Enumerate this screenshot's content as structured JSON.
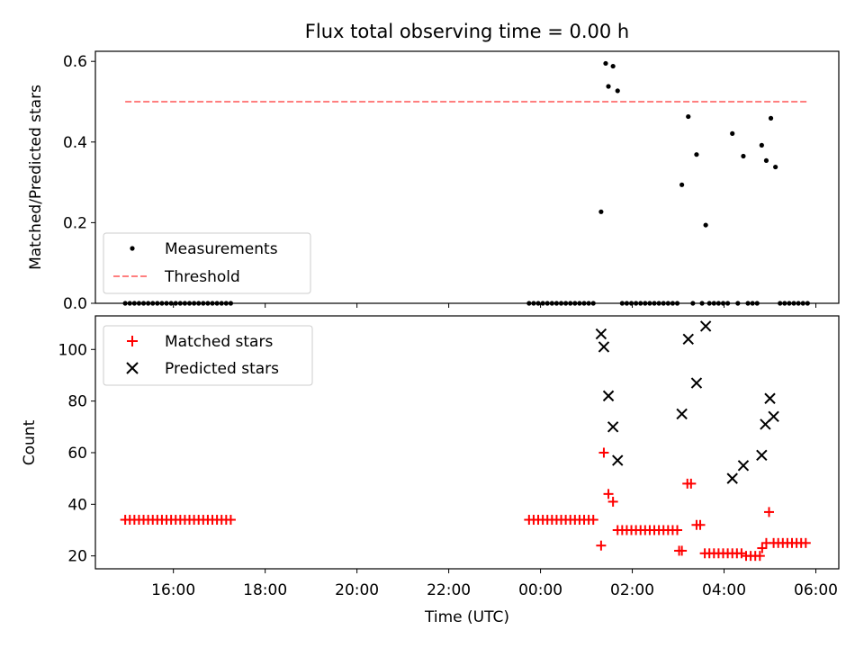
{
  "title": "Flux total observing time = 0.00 h",
  "chart_data": [
    {
      "type": "scatter",
      "panel": "top",
      "ylabel": "Matched/Predicted stars",
      "ylim": [
        0,
        0.625
      ],
      "yticks": [
        0,
        0.2,
        0.4,
        0.6
      ],
      "ytick_labels": [
        "0.0",
        "0.2",
        "0.4",
        "0.6"
      ],
      "legend": {
        "placement": "lower-left",
        "entries": [
          "Measurements",
          "Threshold"
        ]
      },
      "series": [
        {
          "name": "Measurements",
          "color": "#000000",
          "marker": "dot",
          "x": [
            14.95,
            15.05,
            15.15,
            15.25,
            15.35,
            15.45,
            15.55,
            15.65,
            15.75,
            15.85,
            15.95,
            16.05,
            16.15,
            16.25,
            16.35,
            16.45,
            16.55,
            16.65,
            16.75,
            16.85,
            16.95,
            17.05,
            17.15,
            17.25,
            23.75,
            23.85,
            23.95,
            24.05,
            24.15,
            24.25,
            24.35,
            24.45,
            24.55,
            24.65,
            24.75,
            24.85,
            24.95,
            25.05,
            25.15,
            25.32,
            25.42,
            25.48,
            25.58,
            25.68,
            25.78,
            25.88,
            25.98,
            26.08,
            26.18,
            26.28,
            26.38,
            26.48,
            26.58,
            26.68,
            26.78,
            26.88,
            26.98,
            27.08,
            27.22,
            27.32,
            27.4,
            27.52,
            27.6,
            27.68,
            27.78,
            27.88,
            27.98,
            28.08,
            28.18,
            28.3,
            28.42,
            28.52,
            28.62,
            28.72,
            28.82,
            28.92,
            29.02,
            29.12,
            29.22,
            29.32,
            29.42,
            29.52,
            29.62,
            29.72,
            29.82
          ],
          "y": [
            0,
            0,
            0,
            0,
            0,
            0,
            0,
            0,
            0,
            0,
            0,
            0,
            0,
            0,
            0,
            0,
            0,
            0,
            0,
            0,
            0,
            0,
            0,
            0,
            0,
            0,
            0,
            0,
            0,
            0,
            0,
            0,
            0,
            0,
            0,
            0,
            0,
            0,
            0,
            0.227,
            0.595,
            0.538,
            0.588,
            0.527,
            0,
            0,
            0,
            0,
            0,
            0,
            0,
            0,
            0,
            0,
            0,
            0,
            0,
            0.294,
            0.463,
            0,
            0.369,
            0,
            0.194,
            0,
            0,
            0,
            0,
            0,
            0.421,
            0,
            0.365,
            0,
            0,
            0,
            0.392,
            0.354,
            0.459,
            0.338,
            0,
            0,
            0,
            0,
            0,
            0,
            0
          ]
        },
        {
          "name": "Threshold",
          "color": "#ff7f7f",
          "line": "dashed",
          "x": [
            14.95,
            29.85
          ],
          "y": [
            0.5,
            0.5
          ]
        }
      ]
    },
    {
      "type": "scatter",
      "panel": "bottom",
      "xlabel": "Time (UTC)",
      "ylabel": "Count",
      "xlim": [
        14.3,
        30.5
      ],
      "ylim": [
        15,
        113
      ],
      "xticks": [
        16,
        18,
        20,
        22,
        24,
        26,
        28,
        30
      ],
      "xtick_labels": [
        "16:00",
        "18:00",
        "20:00",
        "22:00",
        "00:00",
        "02:00",
        "04:00",
        "06:00"
      ],
      "yticks": [
        20,
        40,
        60,
        80,
        100
      ],
      "ytick_labels": [
        "20",
        "40",
        "60",
        "80",
        "100"
      ],
      "legend": {
        "placement": "upper-left",
        "entries": [
          "Matched stars",
          "Predicted stars"
        ]
      },
      "series": [
        {
          "name": "Matched stars",
          "color": "#ff0000",
          "marker": "plus",
          "x": [
            14.95,
            15.05,
            15.15,
            15.25,
            15.35,
            15.45,
            15.55,
            15.65,
            15.75,
            15.85,
            15.95,
            16.05,
            16.15,
            16.25,
            16.35,
            16.45,
            16.55,
            16.65,
            16.75,
            16.85,
            16.95,
            17.05,
            17.15,
            17.25,
            23.75,
            23.85,
            23.95,
            24.05,
            24.15,
            24.25,
            24.35,
            24.45,
            24.55,
            24.65,
            24.75,
            24.85,
            24.95,
            25.05,
            25.15,
            25.32,
            25.38,
            25.48,
            25.58,
            25.68,
            25.78,
            25.88,
            25.98,
            26.08,
            26.18,
            26.28,
            26.38,
            26.48,
            26.58,
            26.68,
            26.78,
            26.88,
            26.98,
            27.02,
            27.08,
            27.2,
            27.28,
            27.4,
            27.48,
            27.58,
            27.68,
            27.78,
            27.88,
            27.98,
            28.08,
            28.18,
            28.28,
            28.38,
            28.48,
            28.58,
            28.68,
            28.78,
            28.83,
            28.92,
            28.98,
            29.08,
            29.18,
            29.28,
            29.38,
            29.48,
            29.58,
            29.68,
            29.78
          ],
          "y": [
            34,
            34,
            34,
            34,
            34,
            34,
            34,
            34,
            34,
            34,
            34,
            34,
            34,
            34,
            34,
            34,
            34,
            34,
            34,
            34,
            34,
            34,
            34,
            34,
            34,
            34,
            34,
            34,
            34,
            34,
            34,
            34,
            34,
            34,
            34,
            34,
            34,
            34,
            34,
            24,
            60,
            44,
            41,
            30,
            30,
            30,
            30,
            30,
            30,
            30,
            30,
            30,
            30,
            30,
            30,
            30,
            30,
            22,
            22,
            48,
            48,
            32,
            32,
            21,
            21,
            21,
            21,
            21,
            21,
            21,
            21,
            21,
            20,
            20,
            20,
            20,
            23,
            25,
            37,
            25,
            25,
            25,
            25,
            25,
            25,
            25,
            25
          ]
        },
        {
          "name": "Predicted stars",
          "color": "#000000",
          "marker": "x",
          "x": [
            25.32,
            25.38,
            25.48,
            25.58,
            25.68,
            27.08,
            27.22,
            27.4,
            27.6,
            28.18,
            28.42,
            28.82,
            28.9,
            29.0,
            29.08
          ],
          "y": [
            106,
            101,
            82,
            70,
            57,
            75,
            104,
            87,
            109,
            50,
            55,
            59,
            71,
            81,
            74
          ]
        }
      ]
    }
  ]
}
